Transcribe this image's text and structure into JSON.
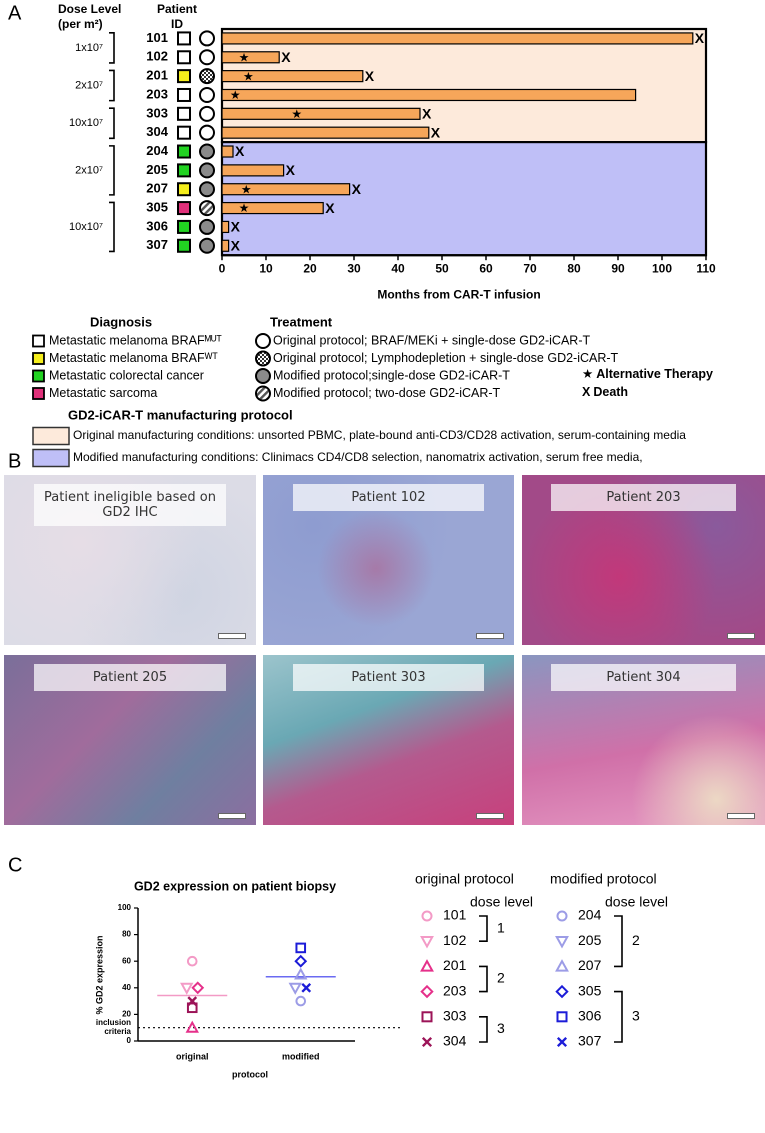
{
  "panel_labels": [
    "A",
    "B",
    "C"
  ],
  "histology_labels": [
    "Patient ineligible based on GD2 IHC",
    "Patient 102",
    "Patient 203",
    "Patient 205",
    "Patient 303",
    "Patient 304"
  ],
  "chart_data": [
    {
      "type": "swimmer",
      "dose_header": [
        "Dose Level",
        "(per m²)"
      ],
      "id_header": [
        "Patient",
        "ID"
      ],
      "xlabel": "Months from CAR-T infusion",
      "xlim": [
        0,
        110
      ],
      "xticks": [
        0,
        10,
        20,
        30,
        40,
        50,
        60,
        70,
        80,
        90,
        100,
        110
      ],
      "bar_color": "#f6a65a",
      "alt_therapy_marker": "★",
      "death_marker": "X",
      "alt_therapy_label": "Alternative Therapy",
      "death_label": "Death",
      "cohorts": [
        {
          "color": "#fdeadb",
          "label": "Original manufacturing conditions: unsorted PBMC, plate-bound anti-CD3/CD28 activation, serum-containing media",
          "groups": [
            {
              "dose": "1x10⁷",
              "patients": [
                {
                  "id": "101",
                  "months": 107,
                  "diagnosis": 0,
                  "treatment": 0,
                  "alt_therapy": null,
                  "death": true
                },
                {
                  "id": "102",
                  "months": 13,
                  "diagnosis": 0,
                  "treatment": 0,
                  "alt_therapy": 5,
                  "death": true
                }
              ]
            },
            {
              "dose": "2x10⁷",
              "patients": [
                {
                  "id": "201",
                  "months": 32,
                  "diagnosis": 1,
                  "treatment": 1,
                  "alt_therapy": 6,
                  "death": true
                },
                {
                  "id": "203",
                  "months": 94,
                  "diagnosis": 0,
                  "treatment": 0,
                  "alt_therapy": 3,
                  "death": false
                }
              ]
            },
            {
              "dose": "10x10⁷",
              "patients": [
                {
                  "id": "303",
                  "months": 45,
                  "diagnosis": 0,
                  "treatment": 0,
                  "alt_therapy": 17,
                  "death": true
                },
                {
                  "id": "304",
                  "months": 47,
                  "diagnosis": 0,
                  "treatment": 0,
                  "alt_therapy": null,
                  "death": true
                }
              ]
            }
          ]
        },
        {
          "color": "#bfbff7",
          "label": "Modified manufacturing conditions: Clinimacs CD4/CD8 selection, nanomatrix activation, serum free media,",
          "groups": [
            {
              "dose": "2x10⁷",
              "patients": [
                {
                  "id": "204",
                  "months": 2.5,
                  "diagnosis": 2,
                  "treatment": 2,
                  "alt_therapy": null,
                  "death": true
                },
                {
                  "id": "205",
                  "months": 14,
                  "diagnosis": 2,
                  "treatment": 2,
                  "alt_therapy": null,
                  "death": true
                },
                {
                  "id": "207",
                  "months": 29,
                  "diagnosis": 1,
                  "treatment": 2,
                  "alt_therapy": 5.5,
                  "death": true
                }
              ]
            },
            {
              "dose": "10x10⁷",
              "patients": [
                {
                  "id": "305",
                  "months": 23,
                  "diagnosis": 3,
                  "treatment": 3,
                  "alt_therapy": 5,
                  "death": true
                },
                {
                  "id": "306",
                  "months": 1.5,
                  "diagnosis": 2,
                  "treatment": 2,
                  "alt_therapy": null,
                  "death": true
                },
                {
                  "id": "307",
                  "months": 1.5,
                  "diagnosis": 2,
                  "treatment": 2,
                  "alt_therapy": null,
                  "death": true
                }
              ]
            }
          ]
        }
      ],
      "diagnosis_title": "Diagnosis",
      "diagnoses": [
        {
          "name": "Metastatic melanoma BRAFᴹᵁᵀ",
          "color": "#ffffff"
        },
        {
          "name": "Metastatic melanoma BRAFᵂᵀ",
          "color": "#f5ee1c"
        },
        {
          "name": "Metastatic colorectal cancer",
          "color": "#22d322"
        },
        {
          "name": "Metastatic sarcoma",
          "color": "#e0307a"
        }
      ],
      "treatment_title": "Treatment",
      "treatments": [
        {
          "name": "Original protocol; BRAF/MEKi + single-dose GD2-iCAR-T",
          "fill": "open"
        },
        {
          "name": "Original protocol; Lymphodepletion + single-dose GD2-iCAR-T",
          "fill": "checker"
        },
        {
          "name": "Modified protocol;single-dose GD2-iCAR-T",
          "fill": "gray"
        },
        {
          "name": "Modified protocol; two-dose GD2-iCAR-T",
          "fill": "hatch"
        }
      ],
      "manufacturing_title": "GD2-iCAR-T manufacturing protocol"
    },
    {
      "type": "dot",
      "title": "GD2 expression on patient biopsy",
      "ylabel": "% GD2 expression",
      "xlabel": "protocol",
      "ylim": [
        0,
        100
      ],
      "yticks": [
        0,
        20,
        40,
        60,
        80,
        100
      ],
      "threshold": {
        "value": 10,
        "label": [
          "inclusion",
          "criteria"
        ]
      },
      "groups": [
        {
          "category": "original",
          "legend_title": "original protocol",
          "dose_label": "dose level",
          "mean": 34.2,
          "mean_color": "#f39ac6",
          "doses": [
            {
              "dose": "1",
              "series": [
                {
                  "name": "101",
                  "color": "#f39ac6",
                  "marker": "circle",
                  "value": 60
                },
                {
                  "name": "102",
                  "color": "#f39ac6",
                  "marker": "triangle-down",
                  "value": 40
                }
              ]
            },
            {
              "dose": "2",
              "series": [
                {
                  "name": "201",
                  "color": "#e5308a",
                  "marker": "triangle-up",
                  "value": 10
                },
                {
                  "name": "203",
                  "color": "#e5308a",
                  "marker": "diamond",
                  "value": 40
                }
              ]
            },
            {
              "dose": "3",
              "series": [
                {
                  "name": "303",
                  "color": "#9c1458",
                  "marker": "square",
                  "value": 25
                },
                {
                  "name": "304",
                  "color": "#9c1458",
                  "marker": "x",
                  "value": 30
                }
              ]
            }
          ]
        },
        {
          "category": "modified",
          "legend_title": "modified protocol",
          "dose_label": "dose level",
          "mean": 48.3,
          "mean_color": "#6a6af2",
          "doses": [
            {
              "dose": "2",
              "series": [
                {
                  "name": "204",
                  "color": "#9c9ce6",
                  "marker": "circle",
                  "value": 30
                },
                {
                  "name": "205",
                  "color": "#9c9ce6",
                  "marker": "triangle-down",
                  "value": 40
                },
                {
                  "name": "207",
                  "color": "#9c9ce6",
                  "marker": "triangle-up",
                  "value": 50
                }
              ]
            },
            {
              "dose": "3",
              "series": [
                {
                  "name": "305",
                  "color": "#1c1cd8",
                  "marker": "diamond",
                  "value": 60
                },
                {
                  "name": "306",
                  "color": "#1c1cd8",
                  "marker": "square",
                  "value": 70
                },
                {
                  "name": "307",
                  "color": "#1c1cd8",
                  "marker": "x",
                  "value": 40
                }
              ]
            }
          ]
        }
      ]
    }
  ]
}
